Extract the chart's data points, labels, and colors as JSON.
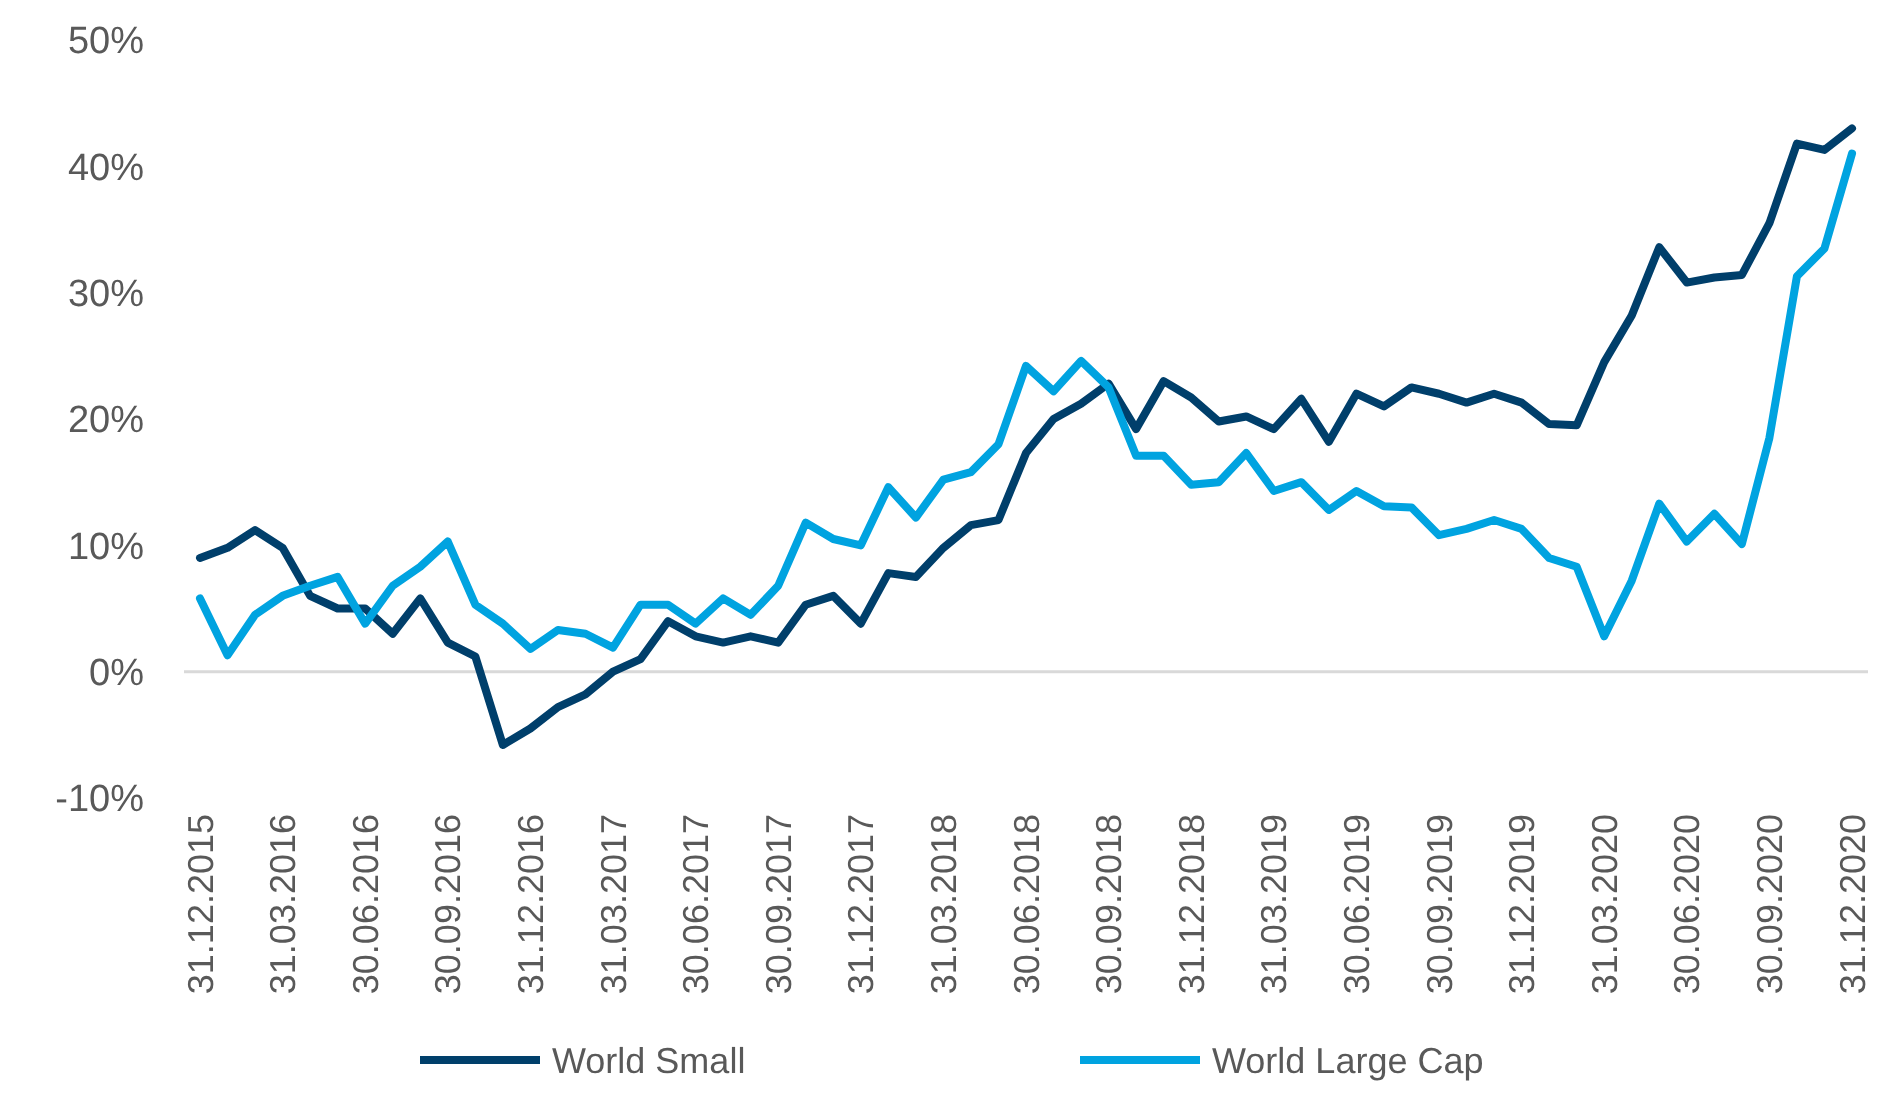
{
  "chart_data": {
    "type": "line",
    "categories": [
      "31.12.2015",
      null,
      null,
      "31.03.2016",
      null,
      null,
      "30.06.2016",
      null,
      null,
      "30.09.2016",
      null,
      null,
      "31.12.2016",
      null,
      null,
      "31.03.2017",
      null,
      null,
      "30.06.2017",
      null,
      null,
      "30.09.2017",
      null,
      null,
      "31.12.2017",
      null,
      null,
      "31.03.2018",
      null,
      null,
      "30.06.2018",
      null,
      null,
      "30.09.2018",
      null,
      null,
      "31.12.2018",
      null,
      null,
      "31.03.2019",
      null,
      null,
      "30.06.2019",
      null,
      null,
      "30.09.2019",
      null,
      null,
      "31.12.2019",
      null,
      null,
      "31.03.2020",
      null,
      null,
      "30.06.2020",
      null,
      null,
      "30.09.2020",
      null,
      null,
      "31.12.2020"
    ],
    "series": [
      {
        "name": "World Small",
        "color": "#003f6b",
        "values": [
          9,
          9.8,
          11.2,
          9.8,
          6,
          5,
          5,
          3,
          5.8,
          2.3,
          1.2,
          -5.8,
          -4.5,
          -2.8,
          -1.8,
          0,
          1,
          4,
          2.8,
          2.3,
          2.8,
          2.3,
          5.3,
          6,
          3.8,
          7.8,
          7.5,
          9.8,
          11.6,
          12,
          17.3,
          20,
          21.2,
          22.8,
          19.2,
          23,
          21.7,
          19.8,
          20.2,
          19.2,
          21.6,
          18.2,
          22,
          21,
          22.5,
          22,
          21.3,
          22,
          21.3,
          19.6,
          19.5,
          24.5,
          28.2,
          33.6,
          30.8,
          31.2,
          31.4,
          35.5,
          41.8,
          41.3,
          43
        ]
      },
      {
        "name": "World Large Cap",
        "color": "#00a3e0",
        "values": [
          5.8,
          1.3,
          4.5,
          6,
          6.8,
          7.5,
          3.8,
          6.8,
          8.3,
          10.3,
          5.3,
          3.8,
          1.8,
          3.3,
          3,
          1.9,
          5.3,
          5.3,
          3.8,
          5.8,
          4.5,
          6.8,
          11.8,
          10.5,
          10,
          14.6,
          12.2,
          15.2,
          15.8,
          18,
          24.2,
          22.2,
          24.6,
          22.5,
          17.1,
          17.1,
          14.8,
          15,
          17.3,
          14.3,
          15,
          12.8,
          14.3,
          13.1,
          13,
          10.8,
          11.3,
          12,
          11.3,
          9,
          8.3,
          2.8,
          7.2,
          13.3,
          10.3,
          12.5,
          10.1,
          18.5,
          31.3,
          33.5,
          41
        ]
      }
    ],
    "ylim": [
      -10,
      50
    ],
    "yticks": [
      {
        "value": -10,
        "label": "-10%"
      },
      {
        "value": 0,
        "label": "0%"
      },
      {
        "value": 10,
        "label": "10%"
      },
      {
        "value": 20,
        "label": "20%"
      },
      {
        "value": 30,
        "label": "30%"
      },
      {
        "value": 40,
        "label": "40%"
      },
      {
        "value": 50,
        "label": "50%"
      }
    ],
    "legend": "bottom"
  }
}
